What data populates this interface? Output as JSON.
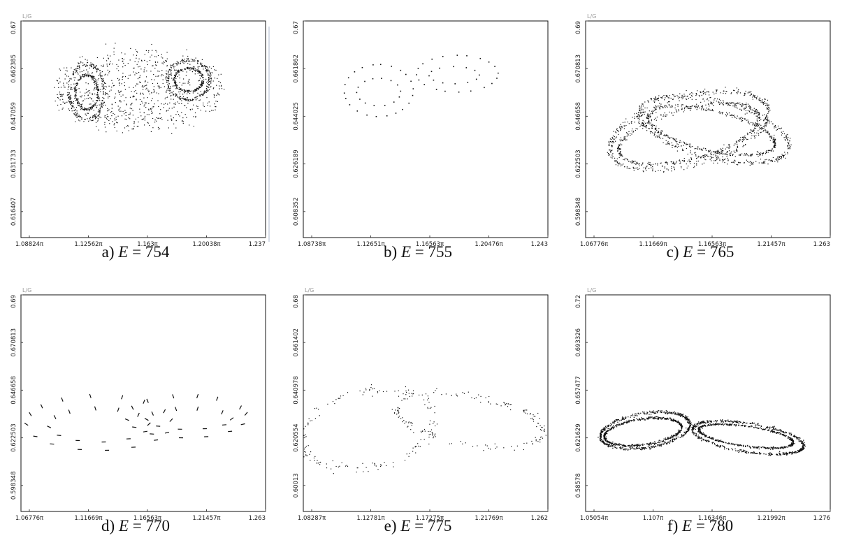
{
  "chart_data": [
    {
      "type": "scatter",
      "ylabel": "L/G",
      "caption_prefix": "a)",
      "caption_value": "754",
      "yticks": [
        "0.67",
        "0.662385",
        "0.647059",
        "0.631733",
        "0.616407"
      ],
      "xticks": [
        "1.08824π",
        "1.12562π",
        "1.163π",
        "1.20038π",
        "1.237"
      ],
      "xlim": [
        1.08824,
        1.237
      ],
      "ylim": [
        0.6088,
        0.67
      ],
      "color": "#111111",
      "density": "high",
      "clouds": [
        {
          "cx": 1.128,
          "cy": 0.65,
          "rx": 0.0075,
          "ry": 0.0052
        },
        {
          "cx": 1.128,
          "cy": 0.65,
          "rx": 0.0115,
          "ry": 0.0085
        },
        {
          "cx": 1.19,
          "cy": 0.6535,
          "rx": 0.0095,
          "ry": 0.0035
        },
        {
          "cx": 1.19,
          "cy": 0.6535,
          "rx": 0.014,
          "ry": 0.006
        },
        {
          "cx": 1.16,
          "cy": 0.6505,
          "rx": 0.052,
          "ry": 0.011
        }
      ]
    },
    {
      "type": "scatter",
      "ylabel": "",
      "caption_prefix": "b)",
      "caption_value": "755",
      "yticks": [
        "0.67",
        "0.661862",
        "0.644025",
        "0.626189",
        "0.608352"
      ],
      "xticks": [
        "1.08738π",
        "1.12651π",
        "1.16563π",
        "1.20476π",
        "1.243"
      ],
      "xlim": [
        1.08738,
        1.243
      ],
      "ylim": [
        0.5994,
        0.67
      ],
      "color": "#111111",
      "density": "sparse",
      "orbits": [
        {
          "cx": 1.135,
          "cy": 0.6475,
          "rx": 0.022,
          "ry": 0.0085,
          "n": 22
        },
        {
          "cx": 1.135,
          "cy": 0.647,
          "rx": 0.014,
          "ry": 0.0045,
          "n": 14
        },
        {
          "cx": 1.185,
          "cy": 0.653,
          "rx": 0.026,
          "ry": 0.006,
          "n": 20
        },
        {
          "cx": 1.183,
          "cy": 0.6525,
          "rx": 0.016,
          "ry": 0.0028,
          "n": 12
        }
      ]
    },
    {
      "type": "scatter",
      "ylabel": "L/G",
      "caption_prefix": "c)",
      "caption_value": "765",
      "yticks": [
        "0.69",
        "0.670813",
        "0.646658",
        "0.622503",
        "0.598348"
      ],
      "xticks": [
        "1.06776π",
        "1.11669π",
        "1.16563π",
        "1.21457π",
        "1.263"
      ],
      "xlim": [
        1.06776,
        1.263
      ],
      "ylim": [
        0.587,
        0.69
      ],
      "color": "#111111",
      "density": "curves",
      "curves": [
        {
          "cx": 1.15,
          "cy": 0.638,
          "rx": 0.066,
          "ry": 0.016,
          "rot": 0.32
        },
        {
          "cx": 1.15,
          "cy": 0.6365,
          "rx": 0.058,
          "ry": 0.012,
          "rot": 0.3
        },
        {
          "cx": 1.17,
          "cy": 0.6385,
          "rx": 0.062,
          "ry": 0.0135,
          "rot": -0.28
        },
        {
          "cx": 1.168,
          "cy": 0.638,
          "rx": 0.052,
          "ry": 0.0095,
          "rot": -0.26
        }
      ]
    },
    {
      "type": "scatter",
      "ylabel": "L/G",
      "caption_prefix": "d)",
      "caption_value": "770",
      "yticks": [
        "0.69",
        "0.670813",
        "0.646658",
        "0.622503",
        "0.598348"
      ],
      "xticks": [
        "1.06776π",
        "1.11669π",
        "1.16563π",
        "1.21457π",
        "1.263"
      ],
      "xlim": [
        1.06776,
        1.263
      ],
      "ylim": [
        0.587,
        0.69
      ],
      "color": "#111111",
      "density": "dashes",
      "orbits": [
        {
          "cx": 1.13,
          "cy": 0.629,
          "rx": 0.058,
          "ry": 0.013,
          "n": 16
        },
        {
          "cx": 1.13,
          "cy": 0.628,
          "rx": 0.04,
          "ry": 0.008,
          "n": 12
        },
        {
          "cx": 1.2,
          "cy": 0.632,
          "rx": 0.048,
          "ry": 0.01,
          "n": 14
        },
        {
          "cx": 1.202,
          "cy": 0.631,
          "rx": 0.034,
          "ry": 0.005,
          "n": 10
        }
      ]
    },
    {
      "type": "scatter",
      "ylabel": "L/G",
      "caption_prefix": "e)",
      "caption_value": "775",
      "yticks": [
        "0.68",
        "0.661402",
        "0.640978",
        "0.620554",
        "0.60013"
      ],
      "xticks": [
        "1.08287π",
        "1.12781π",
        "1.17275π",
        "1.21769π",
        "1.262"
      ],
      "xlim": [
        1.08287,
        1.262
      ],
      "ylim": [
        0.5909,
        0.68
      ],
      "color": "#111111",
      "density": "speckle",
      "curves": [
        {
          "cx": 1.13,
          "cy": 0.625,
          "rx": 0.05,
          "ry": 0.015,
          "rot": 0.3
        },
        {
          "cx": 1.205,
          "cy": 0.6285,
          "rx": 0.055,
          "ry": 0.01,
          "rot": -0.2
        }
      ]
    },
    {
      "type": "scatter",
      "ylabel": "L/G",
      "caption_prefix": "f)",
      "caption_value": "780",
      "yticks": [
        "0.72",
        "0.693326",
        "0.657477",
        "0.621629",
        "0.58578"
      ],
      "xticks": [
        "1.05054π",
        "1.107π",
        "1.16346π",
        "1.21992π",
        "1.276"
      ],
      "xlim": [
        1.05054,
        1.276
      ],
      "ylim": [
        0.5678,
        0.72
      ],
      "color": "#111111",
      "density": "bands",
      "curves": [
        {
          "cx": 1.105,
          "cy": 0.625,
          "rx": 0.042,
          "ry": 0.012,
          "rot": 0.18
        },
        {
          "cx": 1.103,
          "cy": 0.624,
          "rx": 0.036,
          "ry": 0.009,
          "rot": 0.16
        },
        {
          "cx": 1.2,
          "cy": 0.62,
          "rx": 0.052,
          "ry": 0.01,
          "rot": -0.18
        },
        {
          "cx": 1.198,
          "cy": 0.621,
          "rx": 0.044,
          "ry": 0.007,
          "rot": -0.16
        }
      ]
    }
  ]
}
